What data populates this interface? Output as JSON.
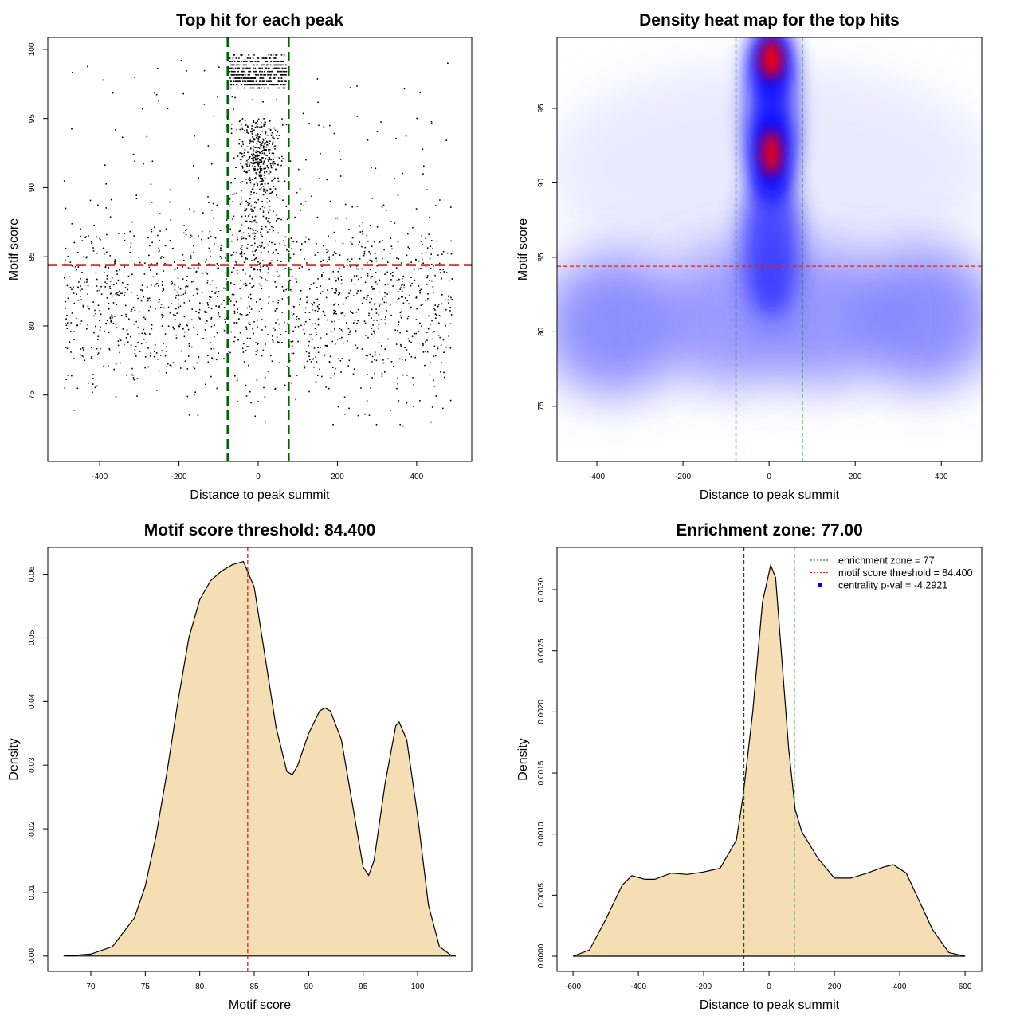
{
  "chart_data": [
    {
      "type": "scatter",
      "title": "Top hit for each peak",
      "xlabel": "Distance to peak summit",
      "ylabel": "Motif score",
      "xlim": [
        -531,
        539
      ],
      "ylim": [
        70.2,
        100.86
      ],
      "xticks": [
        -400,
        -200,
        0,
        200,
        400
      ],
      "xtick_labels": [
        "-400",
        "-200",
        "0",
        "200",
        "400"
      ],
      "yticks": [
        75,
        80,
        85,
        90,
        95,
        100
      ],
      "ytick_labels": [
        "75",
        "80",
        "85",
        "90",
        "95",
        "100"
      ],
      "hlines": [
        {
          "value": 84.4,
          "color": "#e41a1c",
          "style": "dashed"
        }
      ],
      "vlines": [
        {
          "value": -77,
          "color": "#006400",
          "style": "dashed"
        },
        {
          "value": 77,
          "color": "#006400",
          "style": "dashed"
        }
      ],
      "point_clusters": [
        {
          "name": "background",
          "x_dist": "uniform",
          "x": [
            -490,
            490
          ],
          "y_dist": "normal",
          "y": [
            81.5,
            3.3
          ],
          "y_clip": [
            72.5,
            94
          ],
          "n": 1500
        },
        {
          "name": "central-mid",
          "x_dist": "normal",
          "x": [
            0,
            30
          ],
          "y_dist": "uniform",
          "y": [
            84,
            95
          ],
          "y_clip": [
            84,
            95
          ],
          "n": 320
        },
        {
          "name": "central-dense",
          "x_dist": "normal",
          "x": [
            5,
            22
          ],
          "y_dist": "normal",
          "y": [
            92,
            1.3
          ],
          "y_clip": [
            88,
            95
          ],
          "n": 230
        },
        {
          "name": "central-top-band",
          "x_dist": "uniform",
          "x": [
            -72,
            72
          ],
          "y_dist": "rows",
          "y": [
            97.2,
            99.6
          ],
          "y_clip": [
            97.2,
            99.6
          ],
          "n": 420
        },
        {
          "name": "sparse-high",
          "x_dist": "uniform",
          "x": [
            -480,
            480
          ],
          "y_dist": "uniform",
          "y": [
            86,
            99.2
          ],
          "y_clip": [
            86,
            99.2
          ],
          "n": 110
        }
      ]
    },
    {
      "type": "heatmap",
      "title": "Density heat map for the top hits",
      "xlabel": "Distance to peak summit",
      "ylabel": "Motif score",
      "xlim": [
        -492.6,
        494
      ],
      "ylim": [
        71.3,
        99.76
      ],
      "xticks": [
        -400,
        -200,
        0,
        200,
        400
      ],
      "xtick_labels": [
        "-400",
        "-200",
        "0",
        "200",
        "400"
      ],
      "yticks": [
        75,
        80,
        85,
        90,
        95
      ],
      "ytick_labels": [
        "75",
        "80",
        "85",
        "90",
        "95"
      ],
      "hlines": [
        {
          "value": 84.4,
          "color": "#e41a1c",
          "style": "dashed"
        }
      ],
      "vlines": [
        {
          "value": -77,
          "color": "#006400",
          "style": "dashed"
        },
        {
          "value": 77,
          "color": "#006400",
          "style": "dashed"
        }
      ],
      "density_blobs": [
        {
          "x": 0,
          "y": 91,
          "sx": 520,
          "sy": 7,
          "color": "#d8d8ff",
          "opacity": 0.55,
          "blur": "wide"
        },
        {
          "x": -360,
          "y": 80.5,
          "sx": 170,
          "sy": 4.8,
          "color": "#6a6aff",
          "opacity": 0.75,
          "blur": "wide"
        },
        {
          "x": 360,
          "y": 81,
          "sx": 170,
          "sy": 4.8,
          "color": "#6a6aff",
          "opacity": 0.75,
          "blur": "wide"
        },
        {
          "x": -90,
          "y": 81,
          "sx": 160,
          "sy": 4.8,
          "color": "#6a6aff",
          "opacity": 0.65,
          "blur": "wide"
        },
        {
          "x": 120,
          "y": 81,
          "sx": 160,
          "sy": 4.8,
          "color": "#6a6aff",
          "opacity": 0.65,
          "blur": "wide"
        },
        {
          "x": 5,
          "y": 86,
          "sx": 70,
          "sy": 5,
          "color": "#3030ff",
          "opacity": 0.85,
          "blur": "mid"
        },
        {
          "x": 5,
          "y": 94.5,
          "sx": 55,
          "sy": 5.5,
          "color": "#1010ff",
          "opacity": 0.9,
          "blur": "mid"
        },
        {
          "x": 5,
          "y": 92,
          "sx": 42,
          "sy": 2.8,
          "color": "#0000ff",
          "opacity": 1,
          "blur": "mid"
        },
        {
          "x": 5,
          "y": 98.3,
          "sx": 44,
          "sy": 2.4,
          "color": "#0000ff",
          "opacity": 1,
          "blur": "mid"
        },
        {
          "x": 5,
          "y": 92,
          "sx": 22,
          "sy": 1.5,
          "color": "#ff0000",
          "opacity": 0.95,
          "blur": "small"
        },
        {
          "x": 5,
          "y": 98.3,
          "sx": 24,
          "sy": 1.3,
          "color": "#ff0000",
          "opacity": 1,
          "blur": "small"
        }
      ]
    },
    {
      "type": "area",
      "title": "Motif score threshold: 84.400",
      "xlabel": "Motif score",
      "ylabel": "Density",
      "xlim": [
        66.05,
        104.97
      ],
      "ylim": [
        -0.0024,
        0.0642
      ],
      "xticks": [
        70,
        75,
        80,
        85,
        90,
        95,
        100
      ],
      "xtick_labels": [
        "70",
        "75",
        "80",
        "85",
        "90",
        "95",
        "100"
      ],
      "yticks": [
        0,
        0.01,
        0.02,
        0.03,
        0.04,
        0.05,
        0.06
      ],
      "ytick_labels": [
        "0.00",
        "0.01",
        "0.02",
        "0.03",
        "0.04",
        "0.05",
        "0.06"
      ],
      "fill": "#f5deb3",
      "vlines": [
        {
          "value": 84.4,
          "color": "#e41a1c",
          "style": "dashed"
        }
      ],
      "x": [
        67.5,
        70,
        72,
        74,
        75,
        76,
        77,
        78,
        79,
        80,
        81,
        82,
        83,
        84,
        85,
        86,
        87,
        88,
        88.5,
        89,
        90,
        91,
        91.5,
        92,
        93,
        94,
        95,
        95.5,
        96,
        97,
        98,
        98.3,
        99,
        100,
        101,
        102,
        103,
        103.5
      ],
      "y": [
        0,
        0.0003,
        0.0015,
        0.006,
        0.011,
        0.019,
        0.029,
        0.04,
        0.05,
        0.056,
        0.059,
        0.0605,
        0.0615,
        0.062,
        0.058,
        0.047,
        0.036,
        0.029,
        0.0285,
        0.03,
        0.035,
        0.0385,
        0.039,
        0.0385,
        0.034,
        0.024,
        0.014,
        0.0127,
        0.015,
        0.027,
        0.0362,
        0.0368,
        0.034,
        0.022,
        0.008,
        0.0015,
        0.0002,
        0
      ]
    },
    {
      "type": "area",
      "title": "Enrichment zone: 77.00",
      "xlabel": "Distance to peak summit",
      "ylabel": "Density",
      "xlim": [
        -649,
        651
      ],
      "ylim": [
        -0.000124,
        0.003346
      ],
      "xticks": [
        -600,
        -400,
        -200,
        0,
        200,
        400,
        600
      ],
      "xtick_labels": [
        "-600",
        "-400",
        "-200",
        "0",
        "200",
        "400",
        "600"
      ],
      "yticks": [
        0,
        0.0005,
        0.001,
        0.0015,
        0.002,
        0.0025,
        0.003
      ],
      "ytick_labels": [
        "0.0000",
        "0.0005",
        "0.0010",
        "0.0015",
        "0.0020",
        "0.0025",
        "0.0030"
      ],
      "fill": "#f5deb3",
      "vlines": [
        {
          "value": -77,
          "color": "#006400",
          "style": "dashed"
        },
        {
          "value": 77,
          "color": "#006400",
          "style": "dashed"
        }
      ],
      "x": [
        -600,
        -550,
        -500,
        -450,
        -420,
        -380,
        -350,
        -300,
        -250,
        -200,
        -150,
        -100,
        -80,
        -50,
        -20,
        5,
        20,
        40,
        60,
        80,
        100,
        150,
        200,
        250,
        300,
        350,
        380,
        420,
        460,
        500,
        550,
        600
      ],
      "y": [
        0,
        5e-05,
        0.0003,
        0.00058,
        0.00066,
        0.00063,
        0.00063,
        0.00068,
        0.00067,
        0.00069,
        0.00072,
        0.00095,
        0.0013,
        0.002,
        0.0029,
        0.0032,
        0.0031,
        0.0024,
        0.0017,
        0.0012,
        0.00102,
        0.0008,
        0.00064,
        0.00064,
        0.00068,
        0.00073,
        0.00075,
        0.00068,
        0.00045,
        0.00022,
        3e-05,
        0
      ],
      "legend": {
        "position": "top-right",
        "entries": [
          {
            "label": "enrichment zone = 77",
            "color": "#006400",
            "symbol": "dotted-line"
          },
          {
            "label": "motif score threshold = 84.400",
            "color": "#e41a1c",
            "symbol": "dotted-line"
          },
          {
            "label": "centrality p-val = -4.2921",
            "color": "#0000ff",
            "symbol": "dot"
          }
        ]
      }
    }
  ]
}
